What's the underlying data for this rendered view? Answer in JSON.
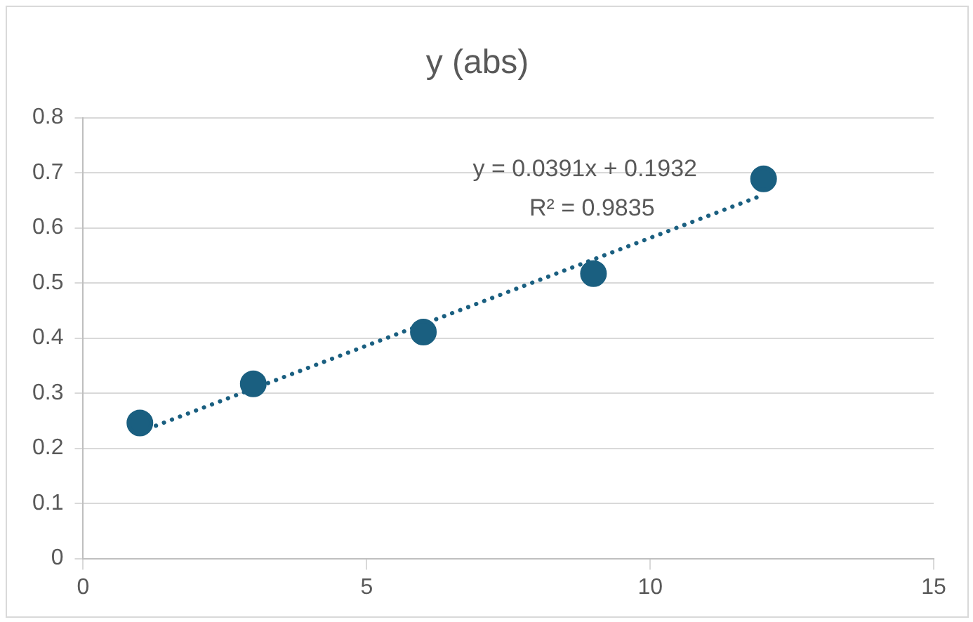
{
  "chart_data": {
    "type": "scatter",
    "title": "y (abs)",
    "series": [
      {
        "type": "scatter",
        "color": "#1a5f80",
        "x": [
          1,
          3,
          6,
          9,
          12
        ],
        "values": [
          0.246,
          0.317,
          0.411,
          0.517,
          0.689
        ],
        "marker": "circle"
      },
      {
        "type": "line",
        "color": "#1a5f80",
        "x": [
          1,
          12
        ],
        "values": [
          0.23,
          0.66
        ],
        "line_style": "dotted",
        "marker": "none"
      }
    ],
    "xlim": [
      0,
      15
    ],
    "xticks": [
      0,
      5,
      10,
      15
    ],
    "ylim": [
      0,
      0.8
    ],
    "yticks": [
      0,
      0.1,
      0.2,
      0.3,
      0.4,
      0.5,
      0.6,
      0.7,
      0.8
    ],
    "grid": "y",
    "annotations": [
      "y = 0.0391x + 0.1932",
      "R² = 0.9835"
    ]
  }
}
